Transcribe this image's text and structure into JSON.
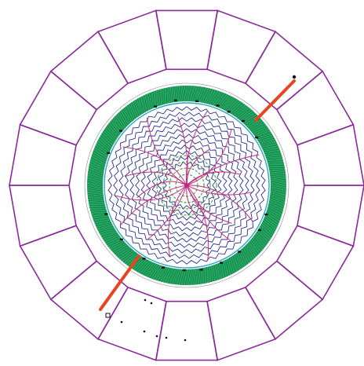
{
  "detector": {
    "calorimeter_segments": 18,
    "muon_color": "#b01f8f",
    "calo_outline_color": "#8a2a9a",
    "silicon_color": "#1aa05a",
    "tracker_color": "#2b2f8f",
    "track_color": "#c0267a",
    "vertex_color": "#2aa02a",
    "jet_color": "#e8441f",
    "beampipe_color": "#2aa4c8"
  }
}
